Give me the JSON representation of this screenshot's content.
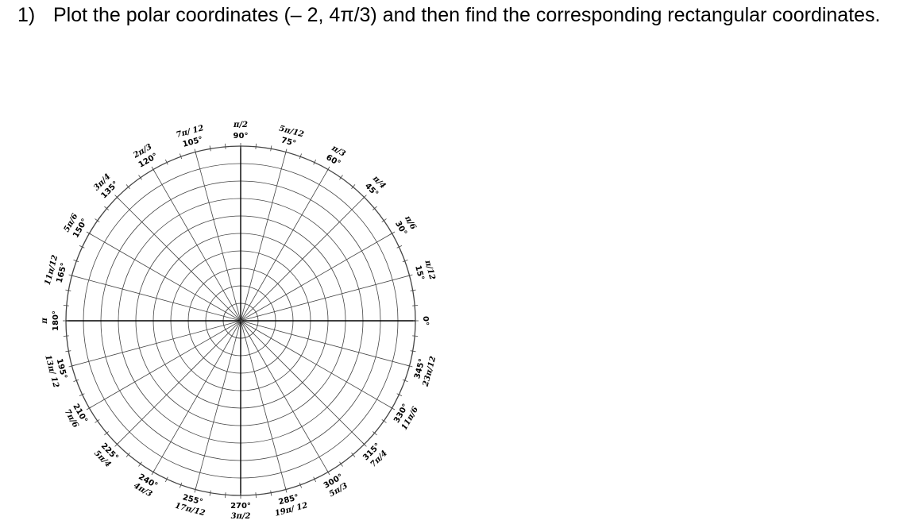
{
  "question": {
    "number": "1)",
    "text": "Plot the polar coordinates (– 2, 4π/3) and then find the corresponding rectangular coordinates."
  },
  "polar_grid": {
    "ring_count": 10,
    "tick_labels": [
      {
        "deg": "0°",
        "rad": ""
      },
      {
        "deg": "15°",
        "rad": "π/12"
      },
      {
        "deg": "30°",
        "rad": "π/6"
      },
      {
        "deg": "45°",
        "rad": "π/4"
      },
      {
        "deg": "60°",
        "rad": "π/3"
      },
      {
        "deg": "75°",
        "rad": "5π/12"
      },
      {
        "deg": "90°",
        "rad": "π/2"
      },
      {
        "deg": "105°",
        "rad": "7π/ 12"
      },
      {
        "deg": "120°",
        "rad": "2π/3"
      },
      {
        "deg": "135°",
        "rad": "3π/4"
      },
      {
        "deg": "150°",
        "rad": "5π/6"
      },
      {
        "deg": "165°",
        "rad": "11π/12"
      },
      {
        "deg": "180°",
        "rad": "π"
      },
      {
        "deg": "195°",
        "rad": "13π/ 12"
      },
      {
        "deg": "210°",
        "rad": "7π/6"
      },
      {
        "deg": "225°",
        "rad": "5π/4"
      },
      {
        "deg": "240°",
        "rad": "4π/3"
      },
      {
        "deg": "255°",
        "rad": "17π/12"
      },
      {
        "deg": "270°",
        "rad": "3π/2"
      },
      {
        "deg": "285°",
        "rad": "19π/ 12"
      },
      {
        "deg": "300°",
        "rad": "5π/3"
      },
      {
        "deg": "315°",
        "rad": "7π/4"
      },
      {
        "deg": "330°",
        "rad": "11π/6"
      },
      {
        "deg": "345°",
        "rad": "23π/12"
      }
    ]
  }
}
